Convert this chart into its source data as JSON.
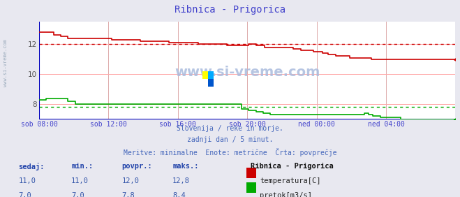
{
  "title": "Ribnica - Prigorica",
  "title_color": "#4444cc",
  "bg_color": "#e8e8f0",
  "plot_bg_color": "#ffffff",
  "grid_h_color": "#ffaaaa",
  "grid_v_color": "#ddaaaa",
  "x_label_color": "#4444cc",
  "subtitle_lines": [
    "Slovenija / reke in morje.",
    "zadnji dan / 5 minut.",
    "Meritve: minimalne  Enote: metrične  Črta: povprečje"
  ],
  "subtitle_color": "#4466bb",
  "watermark": "www.si-vreme.com",
  "watermark_color": "#aabbdd",
  "left_label": "www.si-vreme.com",
  "left_label_color": "#99aabb",
  "x_ticks_labels": [
    "sob 08:00",
    "sob 12:00",
    "sob 16:00",
    "sob 20:00",
    "ned 00:00",
    "ned 04:00"
  ],
  "x_ticks_pos": [
    0,
    48,
    96,
    144,
    192,
    240
  ],
  "xlim": [
    0,
    288
  ],
  "ylim": [
    7.0,
    13.5
  ],
  "y_ticks": [
    8,
    10,
    12
  ],
  "temp_avg": 12.0,
  "flow_avg": 7.8,
  "temp_color": "#cc0000",
  "flow_color": "#00aa00",
  "bottom_line_color": "#0000bb",
  "left_spine_color": "#0000bb",
  "table_header_color": "#2244aa",
  "table_value_color": "#3355aa",
  "legend_title": "Ribnica - Prigorica",
  "legend_entries": [
    {
      "label": "temperatura[C]",
      "color": "#cc0000"
    },
    {
      "label": "pretok[m3/s]",
      "color": "#00aa00"
    }
  ],
  "table_headers": [
    "sedaj:",
    "min.:",
    "povpr.:",
    "maks.:"
  ],
  "table_rows": [
    [
      11.0,
      11.0,
      12.0,
      12.8
    ],
    [
      7.0,
      7.0,
      7.8,
      8.4
    ]
  ],
  "temp_data": [
    12.8,
    12.8,
    12.8,
    12.8,
    12.8,
    12.8,
    12.8,
    12.8,
    12.8,
    12.8,
    12.6,
    12.6,
    12.6,
    12.6,
    12.6,
    12.5,
    12.5,
    12.5,
    12.5,
    12.5,
    12.4,
    12.4,
    12.4,
    12.4,
    12.4,
    12.4,
    12.4,
    12.4,
    12.4,
    12.4,
    12.4,
    12.4,
    12.4,
    12.4,
    12.4,
    12.4,
    12.4,
    12.4,
    12.4,
    12.4,
    12.4,
    12.4,
    12.4,
    12.4,
    12.4,
    12.4,
    12.4,
    12.4,
    12.4,
    12.4,
    12.3,
    12.3,
    12.3,
    12.3,
    12.3,
    12.3,
    12.3,
    12.3,
    12.3,
    12.3,
    12.3,
    12.3,
    12.3,
    12.3,
    12.3,
    12.3,
    12.3,
    12.3,
    12.3,
    12.3,
    12.2,
    12.2,
    12.2,
    12.2,
    12.2,
    12.2,
    12.2,
    12.2,
    12.2,
    12.2,
    12.2,
    12.2,
    12.2,
    12.2,
    12.2,
    12.2,
    12.2,
    12.2,
    12.2,
    12.2,
    12.1,
    12.1,
    12.1,
    12.1,
    12.1,
    12.1,
    12.1,
    12.1,
    12.1,
    12.1,
    12.1,
    12.1,
    12.1,
    12.1,
    12.1,
    12.1,
    12.1,
    12.1,
    12.1,
    12.1,
    12.0,
    12.0,
    12.0,
    12.0,
    12.0,
    12.0,
    12.0,
    12.0,
    12.0,
    12.0,
    12.0,
    12.0,
    12.0,
    12.0,
    12.0,
    12.0,
    12.0,
    12.0,
    12.0,
    12.0,
    11.9,
    11.9,
    11.9,
    11.9,
    11.9,
    11.9,
    11.9,
    11.9,
    11.9,
    11.9,
    11.9,
    11.9,
    11.9,
    11.9,
    11.9,
    12.0,
    12.0,
    12.0,
    12.0,
    12.0,
    11.9,
    11.9,
    11.9,
    11.9,
    11.9,
    11.9,
    11.8,
    11.8,
    11.8,
    11.8,
    11.8,
    11.8,
    11.8,
    11.8,
    11.8,
    11.8,
    11.8,
    11.8,
    11.8,
    11.8,
    11.8,
    11.8,
    11.8,
    11.8,
    11.8,
    11.8,
    11.7,
    11.7,
    11.7,
    11.7,
    11.7,
    11.6,
    11.6,
    11.6,
    11.6,
    11.6,
    11.6,
    11.6,
    11.6,
    11.6,
    11.5,
    11.5,
    11.5,
    11.5,
    11.5,
    11.5,
    11.4,
    11.4,
    11.4,
    11.4,
    11.3,
    11.3,
    11.3,
    11.3,
    11.3,
    11.2,
    11.2,
    11.2,
    11.2,
    11.2,
    11.2,
    11.2,
    11.2,
    11.2,
    11.2,
    11.1,
    11.1,
    11.1,
    11.1,
    11.1,
    11.1,
    11.1,
    11.1,
    11.1,
    11.1,
    11.1,
    11.1,
    11.1,
    11.1,
    11.1,
    11.0,
    11.0,
    11.0,
    11.0,
    11.0,
    11.0,
    11.0,
    11.0,
    11.0,
    11.0,
    11.0,
    11.0,
    11.0,
    11.0,
    11.0,
    11.0,
    11.0,
    11.0,
    11.0,
    11.0,
    11.0,
    11.0,
    11.0,
    11.0,
    11.0,
    11.0,
    11.0,
    11.0,
    11.0,
    11.0,
    11.0,
    11.0,
    11.0,
    11.0,
    11.0,
    11.0,
    11.0,
    11.0,
    11.0,
    11.0,
    11.0,
    11.0,
    11.0,
    11.0,
    11.0,
    11.0,
    11.0,
    11.0,
    11.0,
    11.0,
    11.0,
    11.0,
    11.0,
    11.0,
    11.0,
    11.0,
    11.0,
    11.0
  ],
  "flow_data": [
    8.3,
    8.3,
    8.3,
    8.3,
    8.3,
    8.4,
    8.4,
    8.4,
    8.4,
    8.4,
    8.4,
    8.4,
    8.4,
    8.4,
    8.4,
    8.4,
    8.4,
    8.4,
    8.4,
    8.4,
    8.2,
    8.2,
    8.2,
    8.2,
    8.2,
    8.0,
    8.0,
    8.0,
    8.0,
    8.0,
    8.0,
    8.0,
    8.0,
    8.0,
    8.0,
    8.0,
    8.0,
    8.0,
    8.0,
    8.0,
    8.0,
    8.0,
    8.0,
    8.0,
    8.0,
    8.0,
    8.0,
    8.0,
    8.0,
    8.0,
    8.0,
    8.0,
    8.0,
    8.0,
    8.0,
    8.0,
    8.0,
    8.0,
    8.0,
    8.0,
    8.0,
    8.0,
    8.0,
    8.0,
    8.0,
    8.0,
    8.0,
    8.0,
    8.0,
    8.0,
    8.0,
    8.0,
    8.0,
    8.0,
    8.0,
    8.0,
    8.0,
    8.0,
    8.0,
    8.0,
    8.0,
    8.0,
    8.0,
    8.0,
    8.0,
    8.0,
    8.0,
    8.0,
    8.0,
    8.0,
    8.0,
    8.0,
    8.0,
    8.0,
    8.0,
    8.0,
    8.0,
    8.0,
    8.0,
    8.0,
    8.0,
    8.0,
    8.0,
    8.0,
    8.0,
    8.0,
    8.0,
    8.0,
    8.0,
    8.0,
    8.0,
    8.0,
    8.0,
    8.0,
    8.0,
    8.0,
    8.0,
    8.0,
    8.0,
    8.0,
    8.0,
    8.0,
    8.0,
    8.0,
    8.0,
    8.0,
    8.0,
    8.0,
    8.0,
    8.0,
    8.0,
    8.0,
    8.0,
    8.0,
    8.0,
    8.0,
    8.0,
    8.0,
    8.0,
    8.0,
    7.7,
    7.7,
    7.7,
    7.7,
    7.7,
    7.6,
    7.6,
    7.6,
    7.6,
    7.6,
    7.5,
    7.5,
    7.5,
    7.5,
    7.5,
    7.4,
    7.4,
    7.4,
    7.4,
    7.4,
    7.3,
    7.3,
    7.3,
    7.3,
    7.3,
    7.3,
    7.3,
    7.3,
    7.3,
    7.3,
    7.3,
    7.3,
    7.3,
    7.3,
    7.3,
    7.3,
    7.3,
    7.3,
    7.3,
    7.3,
    7.3,
    7.3,
    7.3,
    7.3,
    7.3,
    7.3,
    7.3,
    7.3,
    7.3,
    7.3,
    7.3,
    7.3,
    7.3,
    7.3,
    7.3,
    7.3,
    7.3,
    7.3,
    7.3,
    7.3,
    7.3,
    7.3,
    7.3,
    7.3,
    7.3,
    7.3,
    7.3,
    7.3,
    7.3,
    7.3,
    7.3,
    7.3,
    7.3,
    7.3,
    7.3,
    7.3,
    7.3,
    7.3,
    7.3,
    7.3,
    7.3,
    7.3,
    7.3,
    7.3,
    7.3,
    7.4,
    7.4,
    7.4,
    7.3,
    7.3,
    7.3,
    7.2,
    7.2,
    7.2,
    7.2,
    7.2,
    7.1,
    7.1,
    7.1,
    7.1,
    7.1,
    7.1,
    7.1,
    7.1,
    7.1,
    7.1,
    7.1,
    7.1,
    7.1,
    7.1,
    7.0,
    7.0,
    7.0,
    7.0,
    7.0,
    7.0,
    7.0,
    7.0,
    7.0,
    7.0,
    7.0,
    7.0,
    7.0,
    7.0,
    7.0,
    7.0,
    7.0,
    7.0,
    7.0,
    7.0,
    7.0,
    7.0,
    7.0,
    7.0,
    7.0,
    7.0,
    7.0,
    7.0,
    7.0,
    7.0,
    7.0,
    7.0,
    7.0,
    7.0,
    7.0,
    7.0,
    7.0,
    7.0
  ]
}
